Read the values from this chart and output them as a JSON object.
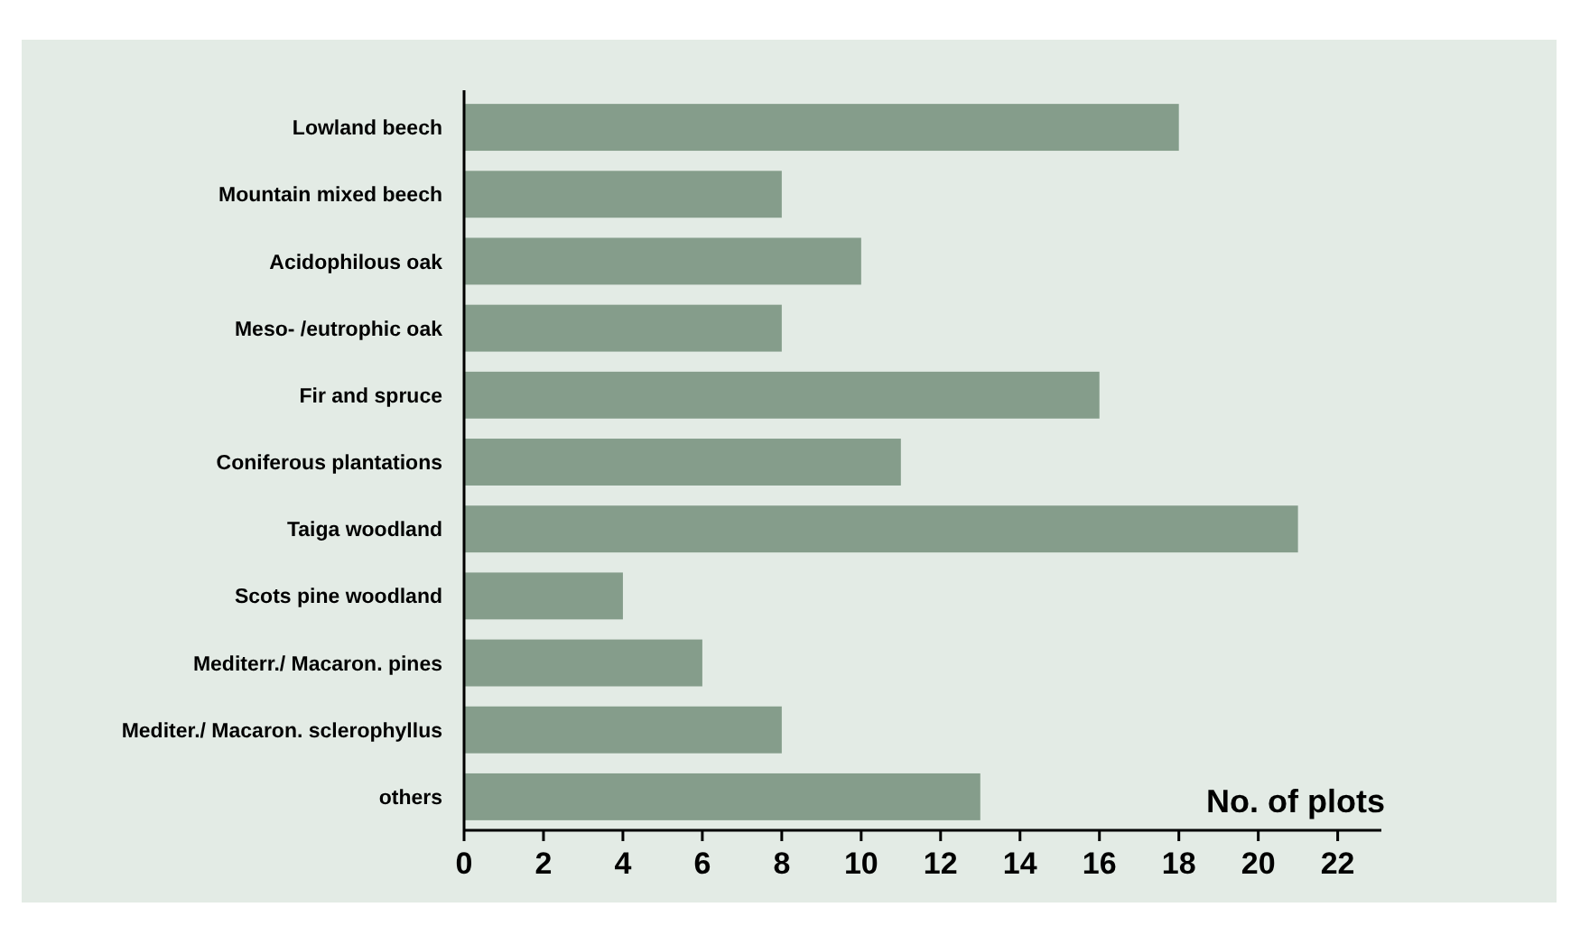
{
  "chart_data": {
    "type": "bar",
    "orientation": "horizontal",
    "xlabel": "No. of plots",
    "categories": [
      "Lowland beech",
      "Mountain mixed beech",
      "Acidophilous oak",
      "Meso- /eutrophic oak",
      "Fir and spruce",
      "Coniferous plantations",
      "Taiga woodland",
      "Scots pine woodland",
      "Mediterr./ Macaron. pines",
      "Mediter./ Macaron. sclerophyllus",
      "others"
    ],
    "values": [
      18,
      8,
      10,
      8,
      16,
      11,
      21,
      4,
      6,
      8,
      13
    ],
    "color": "#859d8b",
    "xlim": [
      0,
      23.1
    ],
    "xticks": [
      0,
      2,
      4,
      6,
      8,
      10,
      12,
      14,
      16,
      18,
      20,
      22
    ],
    "grid": false
  }
}
